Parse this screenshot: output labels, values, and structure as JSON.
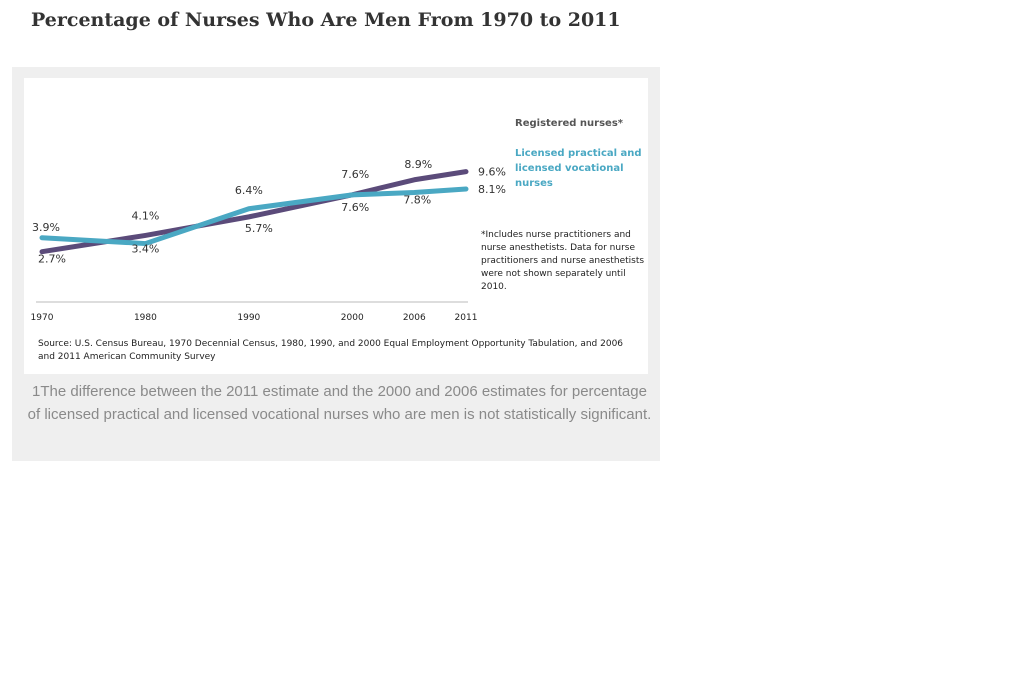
{
  "page": {
    "title": "Percentage of Nurses Who Are Men From 1970 to 2011"
  },
  "chart_data": {
    "type": "line",
    "title": "",
    "xlabel": "",
    "ylabel": "",
    "x": [
      1970,
      1980,
      1990,
      2000,
      2006,
      2011
    ],
    "x_tick_labels": [
      "1970",
      "1980",
      "1990",
      "2000",
      "2006",
      "2011"
    ],
    "ylim": [
      0,
      12
    ],
    "grid": false,
    "series": [
      {
        "name": "Registered nurses*",
        "color": "#5b4b7a",
        "values": [
          2.7,
          4.1,
          5.7,
          7.6,
          8.9,
          9.6
        ],
        "data_labels": [
          "2.7%",
          "4.1%",
          "5.7%",
          "7.6%",
          "8.9%",
          "9.6%"
        ]
      },
      {
        "name": "Licensed practical and licensed vocational nurses",
        "color": "#4aa8c3",
        "values": [
          3.9,
          3.4,
          6.4,
          7.6,
          7.8,
          8.1
        ],
        "data_labels": [
          "3.9%",
          "3.4%",
          "6.4%",
          "7.6%",
          "7.8%",
          "8.1%"
        ]
      }
    ],
    "legend_placement": "right",
    "footnote": "*Includes nurse practitioners and nurse anesthetists. Data for nurse practitioners and nurse anesthetists were not shown separately until 2010.",
    "source": "Source: U.S. Census Bureau, 1970 Decennial Census, 1980, 1990,  and 2000 Equal Employment Opportunity Tabulation, and 2006 and 2011 American Community Survey"
  },
  "caption": "1The difference between the 2011 estimate and the 2000 and 2006 estimates for percentage of licensed practical and licensed vocational nurses who are men is not statistically significant."
}
